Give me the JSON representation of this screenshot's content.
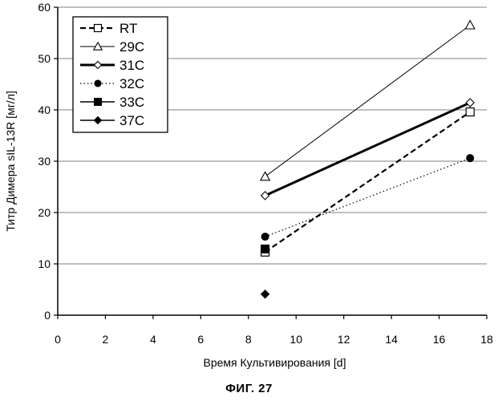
{
  "figure_caption": "ФИГ. 27",
  "colors": {
    "axis": "#000000",
    "grid": "#808080",
    "series": "#000000",
    "background": "#ffffff"
  },
  "chart_data": {
    "type": "line",
    "title": "",
    "xlabel": "Время Культивирования [d]",
    "ylabel": "Титр Димера sIL-13R [мг/л]",
    "xlim": [
      0,
      18
    ],
    "ylim": [
      0,
      60
    ],
    "xticks": [
      0,
      2,
      4,
      6,
      8,
      10,
      12,
      14,
      16,
      18
    ],
    "yticks": [
      0,
      10,
      20,
      30,
      40,
      50,
      60
    ],
    "grid": "horizontal",
    "legend_position": "top-left",
    "series": [
      {
        "name": "RT",
        "line_style": "dashed",
        "marker": "open-square",
        "points": [
          [
            8.7,
            12.3
          ],
          [
            17.3,
            39.6
          ]
        ]
      },
      {
        "name": "29C",
        "line_style": "thin-solid",
        "marker": "open-triangle",
        "points": [
          [
            8.7,
            27.0
          ],
          [
            17.3,
            56.5
          ]
        ]
      },
      {
        "name": "31C",
        "line_style": "thick-solid",
        "marker": "open-diamond",
        "points": [
          [
            8.7,
            23.3
          ],
          [
            17.3,
            41.4
          ]
        ]
      },
      {
        "name": "32C",
        "line_style": "dotted",
        "marker": "filled-circle",
        "points": [
          [
            8.7,
            15.3
          ],
          [
            17.3,
            30.6
          ]
        ]
      },
      {
        "name": "33C",
        "line_style": "solid",
        "marker": "filled-square",
        "points": [
          [
            8.7,
            12.9
          ]
        ]
      },
      {
        "name": "37C",
        "line_style": "solid",
        "marker": "filled-diamond",
        "points": [
          [
            8.7,
            4.1
          ]
        ]
      }
    ]
  }
}
